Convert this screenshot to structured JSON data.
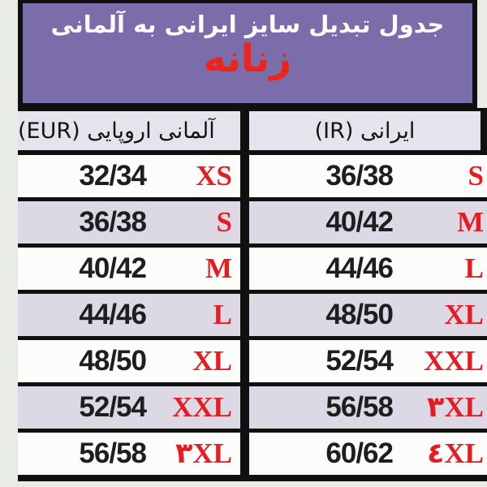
{
  "banner": {
    "title": "جدول تبدیل سایز ایرانی به آلمانی",
    "subtitle": "زنانه"
  },
  "table": {
    "header": {
      "eur": "آلمانی اروپایی (EUR)",
      "ir": "ایرانی (IR)"
    },
    "rows": [
      {
        "eur_size": "32/34",
        "eur_tag": "XS",
        "ir_size": "36/38",
        "ir_tag": "S"
      },
      {
        "eur_size": "36/38",
        "eur_tag": "S",
        "ir_size": "40/42",
        "ir_tag": "M"
      },
      {
        "eur_size": "40/42",
        "eur_tag": "M",
        "ir_size": "44/46",
        "ir_tag": "L"
      },
      {
        "eur_size": "44/46",
        "eur_tag": "L",
        "ir_size": "48/50",
        "ir_tag": "XL"
      },
      {
        "eur_size": "48/50",
        "eur_tag": "XL",
        "ir_size": "52/54",
        "ir_tag": "XXL"
      },
      {
        "eur_size": "52/54",
        "eur_tag": "XXL",
        "ir_size": "56/58",
        "ir_tag": "۳XL"
      },
      {
        "eur_size": "56/58",
        "eur_tag": "۳XL",
        "ir_size": "60/62",
        "ir_tag": "٤XL"
      }
    ]
  },
  "colors": {
    "banner_bg": "#7b6da9",
    "accent_red": "#e51d23",
    "subtitle_red": "#ee2418",
    "row_bg": "#fcfcfa",
    "row_alt_bg": "#dcd9e5",
    "header_row_bg": "#e5e3ec",
    "line": "#101010",
    "page_bg": "#e9ebe6"
  },
  "chart_data": {
    "type": "table",
    "title": "جدول تبدیل سایز ایرانی به آلمانی",
    "subtitle": "زنانه",
    "columns": [
      "آلمانی اروپایی (EUR)",
      "ایرانی (IR)"
    ],
    "rows": [
      [
        "32/34 XS",
        "36/38 S"
      ],
      [
        "36/38 S",
        "40/42 M"
      ],
      [
        "40/42 M",
        "44/46 L"
      ],
      [
        "44/46 L",
        "48/50 XL"
      ],
      [
        "48/50 XL",
        "52/54 XXL"
      ],
      [
        "52/54 XXL",
        "56/58 ۳XL"
      ],
      [
        "56/58 ۳XL",
        "60/62 ٤XL"
      ]
    ],
    "notes": "Women's size conversion table, Iranian (IR) to German/European (EUR); size tags rendered in red serif, numeric ranges in black."
  }
}
